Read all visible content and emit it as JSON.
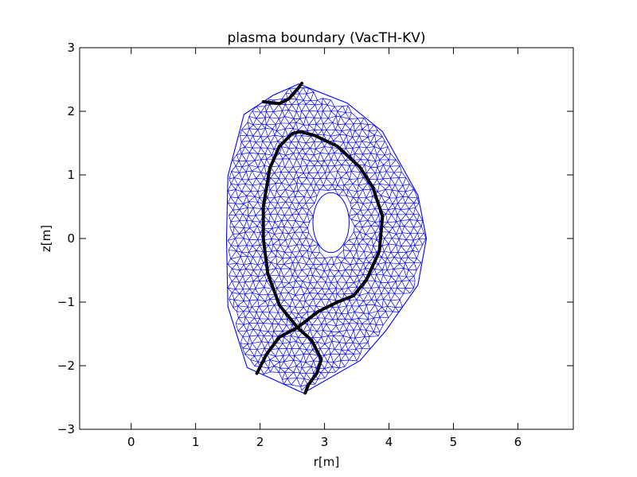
{
  "chart_data": {
    "type": "line",
    "title": "plasma boundary (VacTH-KV)",
    "xlabel": "r[m]",
    "ylabel": "z[m]",
    "xlim": [
      -0.8,
      6.86
    ],
    "ylim": [
      -3,
      3
    ],
    "xticks": [
      0,
      1,
      2,
      3,
      4,
      5,
      6
    ],
    "yticks": [
      -3,
      -2,
      -1,
      0,
      1,
      2,
      3
    ],
    "xtick_labels": [
      "0",
      "1",
      "2",
      "3",
      "4",
      "5",
      "6"
    ],
    "ytick_labels": [
      "−3",
      "−2",
      "−1",
      "0",
      "1",
      "2",
      "3"
    ],
    "grid": false,
    "mesh": {
      "color": "#0000ff",
      "outer_boundary": [
        [
          2.6,
          2.43
        ],
        [
          3.35,
          2.13
        ],
        [
          3.9,
          1.68
        ],
        [
          4.45,
          0.68
        ],
        [
          4.58,
          0.0
        ],
        [
          4.45,
          -0.73
        ],
        [
          3.95,
          -1.45
        ],
        [
          3.55,
          -1.92
        ],
        [
          2.67,
          -2.43
        ],
        [
          1.8,
          -2.03
        ],
        [
          1.5,
          -1.07
        ],
        [
          1.48,
          0.0
        ],
        [
          1.5,
          0.98
        ],
        [
          1.75,
          1.95
        ],
        [
          2.2,
          2.25
        ]
      ],
      "hole": {
        "center": [
          3.1,
          0.25
        ],
        "radius_r": 0.28,
        "radius_z": 0.47
      }
    },
    "series": [
      {
        "color": "#000000",
        "values": [
          [
            2.58,
            -1.4
          ],
          [
            2.3,
            -1.05
          ],
          [
            2.12,
            -0.55
          ],
          [
            2.05,
            0.0
          ],
          [
            2.05,
            0.5
          ],
          [
            2.15,
            1.1
          ],
          [
            2.3,
            1.45
          ],
          [
            2.5,
            1.65
          ],
          [
            2.62,
            1.68
          ],
          [
            2.85,
            1.62
          ],
          [
            3.2,
            1.45
          ],
          [
            3.55,
            1.12
          ],
          [
            3.75,
            0.8
          ],
          [
            3.9,
            0.35
          ],
          [
            3.85,
            -0.2
          ],
          [
            3.65,
            -0.65
          ],
          [
            3.45,
            -0.9
          ],
          [
            3.2,
            -1.0
          ],
          [
            2.9,
            -1.15
          ],
          [
            2.58,
            -1.4
          ]
        ]
      },
      {
        "color": "#000000",
        "values": [
          [
            2.58,
            -1.4
          ],
          [
            2.3,
            -1.55
          ],
          [
            2.1,
            -1.82
          ],
          [
            1.95,
            -2.12
          ]
        ]
      },
      {
        "color": "#000000",
        "values": [
          [
            2.58,
            -1.4
          ],
          [
            2.8,
            -1.6
          ],
          [
            2.95,
            -1.9
          ],
          [
            2.88,
            -2.12
          ],
          [
            2.75,
            -2.3
          ],
          [
            2.7,
            -2.43
          ]
        ]
      },
      {
        "color": "#000000",
        "values": [
          [
            2.05,
            2.15
          ],
          [
            2.3,
            2.12
          ],
          [
            2.45,
            2.2
          ],
          [
            2.58,
            2.35
          ],
          [
            2.65,
            2.44
          ]
        ]
      }
    ]
  }
}
